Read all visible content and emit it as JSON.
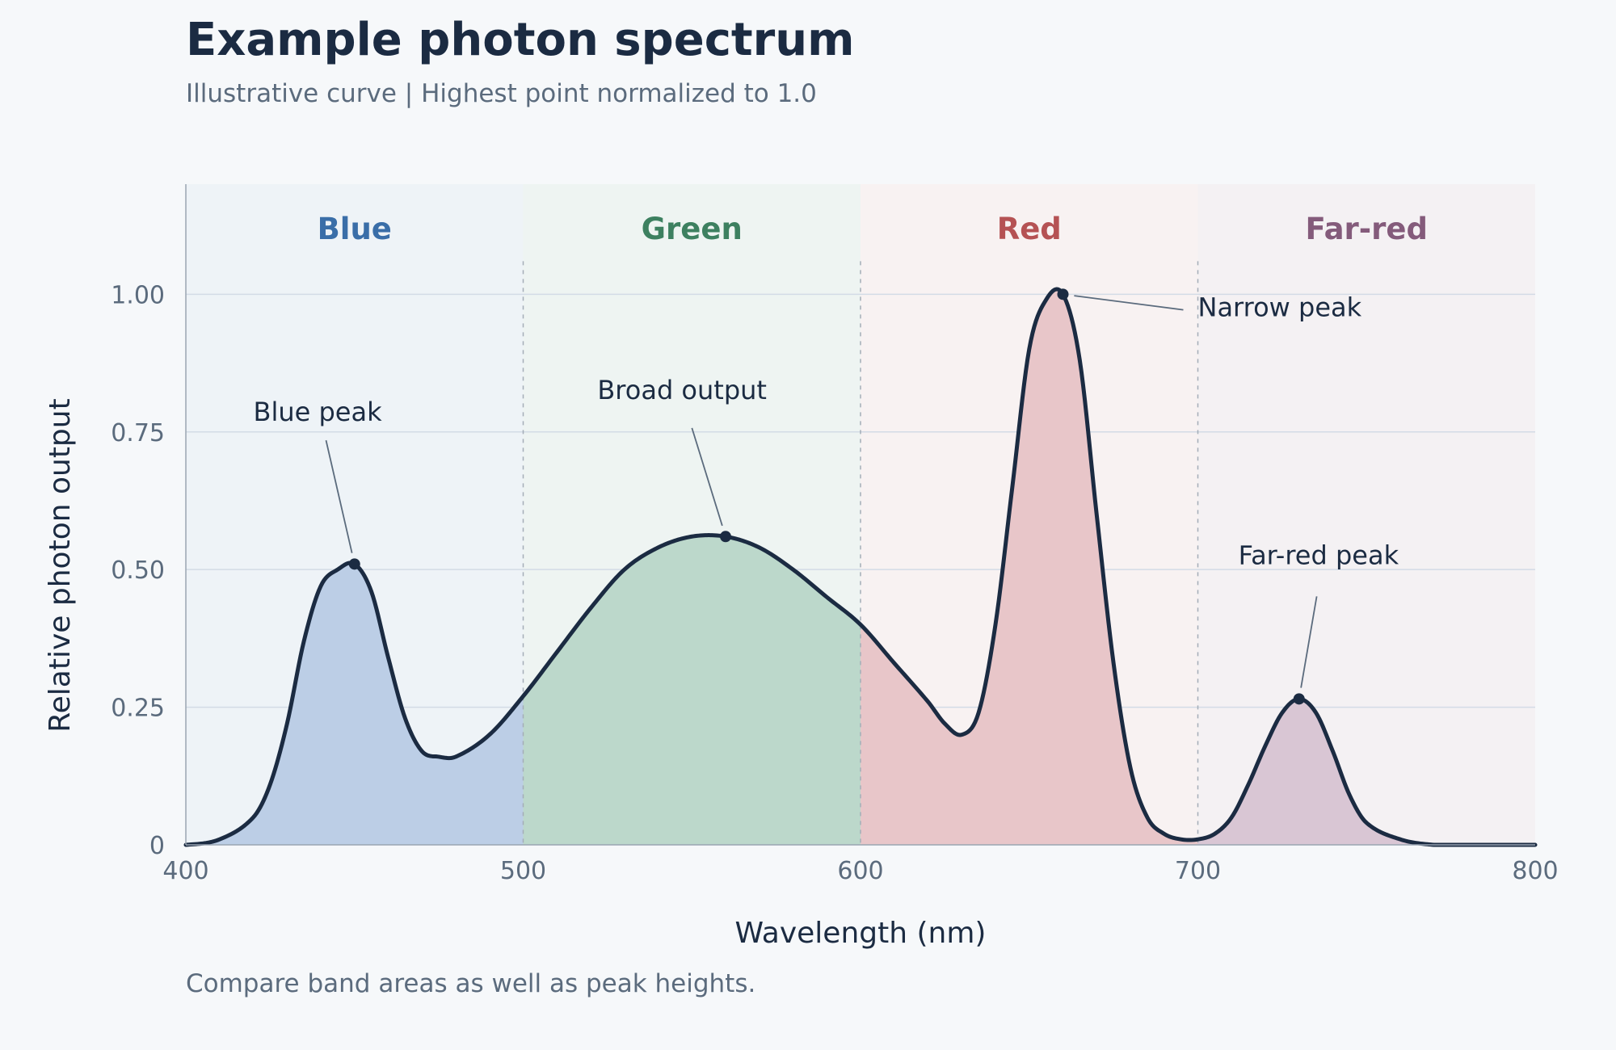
{
  "header": {
    "title": "Example photon spectrum",
    "subtitle": "Illustrative curve  |  Highest point normalized to 1.0"
  },
  "footer": {
    "caption": "Compare band areas as well as peak heights."
  },
  "chart_data": {
    "type": "area",
    "xlabel": "Wavelength (nm)",
    "ylabel": "Relative photon output",
    "xlim": [
      400,
      800
    ],
    "ylim": [
      0,
      1.2
    ],
    "x_ticks": [
      400,
      500,
      600,
      700,
      800
    ],
    "x_tick_labels": [
      "400",
      "500",
      "600",
      "700",
      "800"
    ],
    "y_ticks": [
      0,
      0.25,
      0.5,
      0.75,
      1.0
    ],
    "y_tick_labels": [
      "0",
      "0.25",
      "0.50",
      "0.75",
      "1.00"
    ],
    "grid": "horizontal",
    "series": [
      {
        "x": [
          400,
          410,
          420,
          425,
          430,
          435,
          440,
          445,
          450,
          455,
          460,
          465,
          470,
          475,
          480,
          490,
          500,
          510,
          520,
          530,
          540,
          550,
          560,
          570,
          580,
          590,
          600,
          610,
          620,
          625,
          630,
          635,
          640,
          645,
          650,
          655,
          660,
          665,
          670,
          675,
          680,
          685,
          690,
          695,
          700,
          705,
          710,
          715,
          720,
          725,
          730,
          735,
          740,
          745,
          750,
          760,
          770,
          780,
          790,
          800
        ],
        "y": [
          0.0,
          0.01,
          0.05,
          0.11,
          0.22,
          0.37,
          0.47,
          0.5,
          0.51,
          0.46,
          0.34,
          0.23,
          0.17,
          0.16,
          0.16,
          0.2,
          0.27,
          0.35,
          0.43,
          0.5,
          0.54,
          0.56,
          0.56,
          0.54,
          0.5,
          0.45,
          0.4,
          0.33,
          0.26,
          0.22,
          0.2,
          0.24,
          0.4,
          0.65,
          0.9,
          0.99,
          1.0,
          0.88,
          0.6,
          0.33,
          0.14,
          0.05,
          0.02,
          0.01,
          0.01,
          0.02,
          0.05,
          0.11,
          0.18,
          0.24,
          0.265,
          0.24,
          0.17,
          0.09,
          0.04,
          0.01,
          0.0,
          0.0,
          0.0,
          0.0
        ]
      }
    ],
    "bands": [
      {
        "name": "Blue",
        "x0": 400,
        "x1": 500,
        "label_color": "#3a6ea8",
        "fill": "#bccee6",
        "bg": "#eef3f7"
      },
      {
        "name": "Green",
        "x0": 500,
        "x1": 600,
        "label_color": "#3d8060",
        "fill": "#bcd8cb",
        "bg": "#eef4f2"
      },
      {
        "name": "Red",
        "x0": 600,
        "x1": 700,
        "label_color": "#b55254",
        "fill": "#e8c6c9",
        "bg": "#f8f2f2"
      },
      {
        "name": "Far-red",
        "x0": 700,
        "x1": 800,
        "label_color": "#845b7b",
        "fill": "#d9c6d4",
        "bg": "#f4f1f3"
      }
    ],
    "annotations": [
      {
        "text": "Blue peak",
        "point": [
          450,
          0.51
        ],
        "text_at": [
          420,
          0.77
        ],
        "anchor": "start"
      },
      {
        "text": "Broad output",
        "point": [
          560,
          0.56
        ],
        "text_at": [
          522,
          0.81
        ],
        "anchor": "start"
      },
      {
        "text": "Narrow peak",
        "point": [
          660,
          1.0
        ],
        "text_at": [
          700,
          0.96
        ],
        "anchor": "start"
      },
      {
        "text": "Far-red peak",
        "point": [
          730,
          0.265
        ],
        "text_at": [
          712,
          0.51
        ],
        "anchor": "start"
      }
    ],
    "colors": {
      "line": "#1b2b42",
      "grid": "#d3dbe6",
      "axis": "#9aa5b1",
      "divider": "#a4adb8",
      "leader": "#5b6b7d",
      "background": "#f6f8fa"
    }
  }
}
